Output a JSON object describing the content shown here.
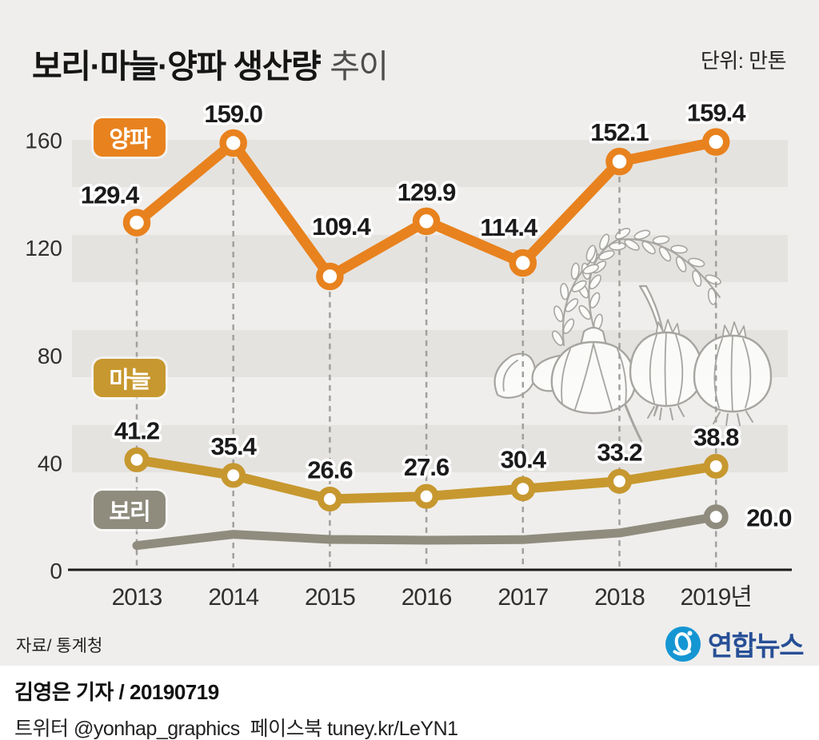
{
  "header": {
    "title_main": "보리·마늘·양파 생산량",
    "title_sub": "추이",
    "unit_label": "단위: 만톤"
  },
  "chart_data": {
    "type": "line",
    "title": "보리·마늘·양파 생산량 추이",
    "unit": "만톤",
    "categories": [
      "2013",
      "2014",
      "2015",
      "2016",
      "2017",
      "2018",
      "2019년"
    ],
    "y_ticks": [
      0,
      40,
      80,
      120,
      160
    ],
    "ylim": [
      0,
      175
    ],
    "grid": "horizontal-stripes",
    "legend_position": "inline-badges-left",
    "series": [
      {
        "name": "양파",
        "color": "#E8821E",
        "values": [
          129.4,
          159.0,
          109.4,
          129.9,
          114.4,
          152.1,
          159.4
        ],
        "point_labels": [
          "129.4",
          "159.0",
          "109.4",
          "129.9",
          "114.4",
          "152.1",
          "159.4"
        ],
        "markers": "all"
      },
      {
        "name": "마늘",
        "color": "#C7982F",
        "values": [
          41.2,
          35.4,
          26.6,
          27.6,
          30.4,
          33.2,
          38.8
        ],
        "point_labels": [
          "41.2",
          "35.4",
          "26.6",
          "27.6",
          "30.4",
          "33.2",
          "38.8"
        ],
        "markers": "all"
      },
      {
        "name": "보리",
        "color": "#8F8C7E",
        "values": [
          9.3,
          13.5,
          11.6,
          11.3,
          11.5,
          14.0,
          20.0
        ],
        "point_labels": [
          "",
          "",
          "",
          "",
          "",
          "",
          "20.0"
        ],
        "markers": "last"
      }
    ]
  },
  "palette": {
    "background": "#EFEEEC",
    "stripe": "#E5E3E0",
    "label_text": "#1B1B1B",
    "tick_text": "#2F2F2F",
    "dashed_line": "#A0A09D",
    "axis": "#1B1B1B",
    "watermark_stroke": "#A4A29D",
    "watermark_fill": "#FCFCFB",
    "logo_icon_blue": "#1496D3",
    "logo_text_blue": "#274F96"
  },
  "source": {
    "label": "자료/ 통계청"
  },
  "logo": {
    "name": "연합뉴스"
  },
  "footer": {
    "byline": "김영은 기자 / 20190719",
    "social": "트위터 @yonhap_graphics  페이스북 tuney.kr/LeYN1"
  }
}
